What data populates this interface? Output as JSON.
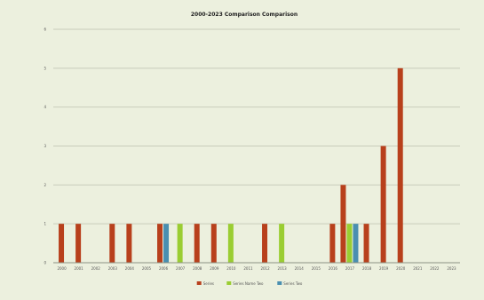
{
  "chart_data": {
    "type": "bar",
    "title": "2000-2023 Comparison Comparison",
    "xlabel": "",
    "ylabel": "",
    "categories": [
      "2000",
      "2001",
      "2002",
      "2003",
      "2004",
      "2005",
      "2006",
      "2007",
      "2008",
      "2009",
      "2010",
      "2011",
      "2012",
      "2013",
      "2014",
      "2015",
      "2016",
      "2017",
      "2018",
      "2019",
      "2020",
      "2021",
      "2022",
      "2023"
    ],
    "ylim": [
      0,
      6
    ],
    "yticks": [
      0,
      1,
      2,
      3,
      4,
      5,
      6
    ],
    "grid": true,
    "legend_position": "bottom",
    "series": [
      {
        "name": "Series",
        "color": "#b8401c",
        "values": [
          1,
          1,
          0,
          1,
          1,
          0,
          1,
          0,
          1,
          1,
          0,
          0,
          1,
          0,
          0,
          0,
          1,
          2,
          1,
          3,
          5,
          0,
          0,
          0
        ]
      },
      {
        "name": "Series Name Two",
        "color": "#9acd32",
        "values": [
          0,
          0,
          0,
          0,
          0,
          0,
          0,
          1,
          0,
          0,
          1,
          0,
          0,
          1,
          0,
          0,
          0,
          1,
          0,
          0,
          0,
          0,
          0,
          0
        ]
      },
      {
        "name": "Series Two",
        "color": "#4a8fb0",
        "values": [
          0,
          0,
          0,
          0,
          0,
          0,
          1,
          0,
          0,
          0,
          0,
          0,
          0,
          0,
          0,
          0,
          0,
          1,
          0,
          0,
          0,
          0,
          0,
          0
        ]
      }
    ]
  }
}
